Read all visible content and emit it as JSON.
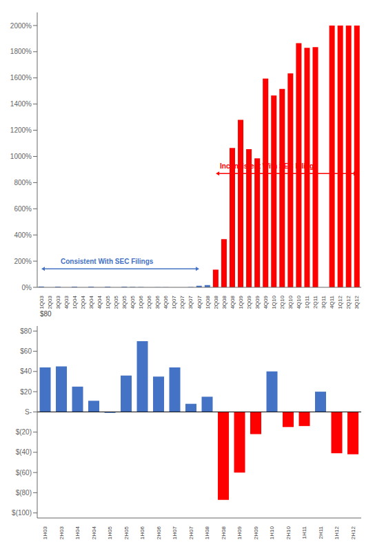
{
  "chart_data": [
    {
      "type": "bar",
      "categories": [
        "1Q03",
        "2Q03",
        "3Q03",
        "4Q03",
        "1Q04",
        "2Q04",
        "3Q04",
        "4Q04",
        "1Q05",
        "2Q05",
        "3Q05",
        "4Q05",
        "1Q06",
        "2Q06",
        "3Q06",
        "4Q06",
        "1Q07",
        "2Q07",
        "3Q07",
        "4Q07",
        "1Q08",
        "2Q08",
        "3Q08",
        "4Q08",
        "1Q09",
        "2Q09",
        "3Q09",
        "4Q09",
        "1Q10",
        "2Q10",
        "3Q10",
        "4Q10",
        "1Q11",
        "2Q11",
        "3Q11",
        "4Q11",
        "1Q12",
        "2Q12",
        "3Q12"
      ],
      "values": [
        0.06,
        0.0,
        0.05,
        0.0,
        0.05,
        0.0,
        0.05,
        0.0,
        0.05,
        0.0,
        0.05,
        0.03,
        0.02,
        0.0,
        0.01,
        0.01,
        0.0,
        0.0,
        0.025,
        0.12,
        0.17,
        1.35,
        3.68,
        10.65,
        12.8,
        10.55,
        9.85,
        15.95,
        14.65,
        15.15,
        16.35,
        18.65,
        18.3,
        18.35,
        0.0,
        20.0,
        20.0,
        20.0,
        20.0
      ],
      "colors": [
        "#4472C4",
        "#4472C4",
        "#4472C4",
        "#4472C4",
        "#4472C4",
        "#4472C4",
        "#4472C4",
        "#4472C4",
        "#4472C4",
        "#4472C4",
        "#4472C4",
        "#4472C4",
        "#4472C4",
        "#4472C4",
        "#4472C4",
        "#4472C4",
        "#4472C4",
        "#4472C4",
        "#4472C4",
        "#4472C4",
        "#4472C4",
        "#FF0000",
        "#FF0000",
        "#FF0000",
        "#FF0000",
        "#FF0000",
        "#FF0000",
        "#FF0000",
        "#FF0000",
        "#FF0000",
        "#FF0000",
        "#FF0000",
        "#FF0000",
        "#FF0000",
        "#FF0000",
        "#FF0000",
        "#FF0000",
        "#FF0000",
        "#FF0000"
      ],
      "ylim": [
        0,
        21
      ],
      "yticks": [
        {
          "value": 0,
          "label": "0%"
        },
        {
          "value": 2,
          "label": "200%"
        },
        {
          "value": 4,
          "label": "400%"
        },
        {
          "value": 6,
          "label": "600%"
        },
        {
          "value": 8,
          "label": "800%"
        },
        {
          "value": 10,
          "label": "1000%"
        },
        {
          "value": 12,
          "label": "1200%"
        },
        {
          "value": 14,
          "label": "1400%"
        },
        {
          "value": 16,
          "label": "1600%"
        },
        {
          "value": 18,
          "label": "1800%"
        },
        {
          "value": 20,
          "label": "2000%"
        }
      ],
      "grid": false,
      "annotations": [
        {
          "text": "Consistent With SEC Filings",
          "color": "#4472C4",
          "start": "1Q03",
          "end": "4Q07"
        },
        {
          "text": "Inconsistent With SEC Filings",
          "color": "#FF0000",
          "start": "2Q08",
          "end": "3Q12"
        }
      ]
    },
    {
      "type": "bar",
      "categories": [
        "1H03",
        "2H03",
        "1H04",
        "2H04",
        "1H05",
        "2H05",
        "1H06",
        "2H06",
        "1H07",
        "2H07",
        "1H08",
        "2H08",
        "1H09",
        "2H09",
        "1H10",
        "2H10",
        "1H11",
        "2H11",
        "1H12",
        "2H12"
      ],
      "values": [
        44,
        45,
        25,
        11,
        -1,
        36,
        70,
        35,
        44,
        8,
        15,
        -87,
        -60,
        -22,
        40,
        -15,
        -14,
        20,
        -41,
        -42
      ],
      "colors": [
        "#4472C4",
        "#4472C4",
        "#4472C4",
        "#4472C4",
        "#4472C4",
        "#4472C4",
        "#4472C4",
        "#4472C4",
        "#4472C4",
        "#4472C4",
        "#4472C4",
        "#FF0000",
        "#FF0000",
        "#FF0000",
        "#4472C4",
        "#FF0000",
        "#FF0000",
        "#4472C4",
        "#FF0000",
        "#FF0000"
      ],
      "ylim": [
        -105,
        85
      ],
      "yticks": [
        {
          "value": -100,
          "label": "$(100)"
        },
        {
          "value": -80,
          "label": "$(80)"
        },
        {
          "value": -60,
          "label": "$(60)"
        },
        {
          "value": -40,
          "label": "$(40)"
        },
        {
          "value": -20,
          "label": "$(20)"
        },
        {
          "value": 0,
          "label": "S-"
        },
        {
          "value": 20,
          "label": "$20"
        },
        {
          "value": 40,
          "label": "$40"
        },
        {
          "value": 60,
          "label": "$60"
        },
        {
          "value": 80,
          "label": "$80"
        }
      ],
      "grid": false,
      "annotations": [
        {
          "text": "$80"
        }
      ]
    }
  ]
}
